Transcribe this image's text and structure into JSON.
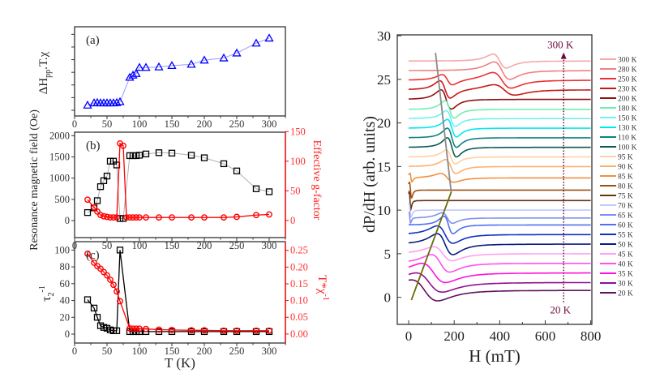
{
  "chart_data": [
    {
      "panel": "(a)",
      "type": "line",
      "ylabel": {
        "main": "ΔH",
        "sub": "pp",
        "rest": ".T.χ"
      },
      "xlim": [
        0,
        325
      ],
      "xticks": [
        0,
        50,
        100,
        150,
        200,
        250,
        300
      ],
      "ylim": [
        -0.45,
        6.6
      ],
      "yticks": [
        0,
        1,
        2,
        3,
        4,
        5,
        6
      ],
      "y_tick_labels_shown": false,
      "series": [
        {
          "color": "#0000ff",
          "line_color": "#9a9aff",
          "marker": "triangle",
          "x": [
            20,
            30,
            35,
            40,
            45,
            50,
            55,
            60,
            65,
            70,
            85,
            90,
            95,
            100,
            110,
            130,
            150,
            180,
            200,
            230,
            250,
            280,
            300
          ],
          "y": [
            0.4,
            0.58,
            0.6,
            0.58,
            0.58,
            0.58,
            0.58,
            0.58,
            0.6,
            0.67,
            2.6,
            2.77,
            2.9,
            3.38,
            3.38,
            3.42,
            3.53,
            3.63,
            3.96,
            4.13,
            4.52,
            5.3,
            5.7
          ]
        }
      ]
    },
    {
      "panel": "(b)",
      "type": "line",
      "ylabel": "Resonance magnetic field (Oe)",
      "ylabel_right": "Effective g-factor",
      "xlim": [
        0,
        325
      ],
      "xticks": [
        0,
        50,
        100,
        150,
        200,
        250,
        300
      ],
      "ylim": [
        -400,
        2083
      ],
      "yticks": [
        0,
        500,
        1000,
        1500,
        2000
      ],
      "ylim_right": [
        -29,
        149
      ],
      "yticks_right": [
        0,
        50,
        100,
        150
      ],
      "series": [
        {
          "axis": "left",
          "color": "#000000",
          "line_color": "#b0b0b0",
          "marker": "square",
          "x": [
            20,
            30,
            35,
            40,
            45,
            50,
            55,
            60,
            65,
            70,
            75,
            85,
            90,
            95,
            100,
            110,
            130,
            150,
            180,
            200,
            230,
            250,
            280,
            300
          ],
          "y": [
            190,
            300,
            470,
            800,
            940,
            1050,
            1400,
            1400,
            1310,
            50,
            50,
            1530,
            1530,
            1530,
            1540,
            1570,
            1600,
            1590,
            1540,
            1480,
            1340,
            1170,
            750,
            680
          ]
        },
        {
          "axis": "right",
          "color": "#ff0000",
          "line_color": "#ff0000",
          "marker": "circle",
          "x": [
            20,
            30,
            35,
            40,
            45,
            50,
            55,
            60,
            65,
            70,
            75,
            80,
            85,
            90,
            95,
            100,
            110,
            130,
            150,
            180,
            200,
            230,
            250,
            280,
            300
          ],
          "y": [
            35,
            22,
            15,
            9,
            7,
            6,
            5,
            5,
            5,
            130,
            126,
            5,
            5,
            5,
            5,
            5,
            5,
            5,
            5,
            5,
            5,
            5,
            6,
            9,
            10
          ]
        }
      ]
    },
    {
      "panel": "(c)",
      "type": "line",
      "xlabel": "T (K)",
      "ylabel": {
        "main": "τ",
        "sub": "2",
        "sup": "-1"
      },
      "ylabel_right": {
        "main": "T*χ",
        "sup": "-1"
      },
      "xlim": [
        0,
        325
      ],
      "xticks": [
        0,
        50,
        100,
        150,
        200,
        250,
        300
      ],
      "ylim": [
        -10.6,
        110
      ],
      "yticks": [
        0,
        20,
        40,
        60,
        80,
        100
      ],
      "ylim_right": [
        -0.027,
        0.276
      ],
      "yticks_right": [
        "0.00",
        "0.05",
        "0.10",
        "0.15",
        "0.20",
        "0.25"
      ],
      "series": [
        {
          "axis": "left",
          "color": "#000000",
          "line_color": "#000000",
          "marker": "square",
          "x": [
            20,
            30,
            35,
            40,
            45,
            50,
            55,
            60,
            65,
            70,
            85,
            90,
            95,
            100,
            110,
            130,
            150,
            180,
            200,
            230,
            250,
            280,
            300
          ],
          "y": [
            41,
            31,
            20,
            10,
            8,
            7,
            5,
            4,
            4,
            100,
            3,
            3,
            3,
            3,
            3,
            3,
            3,
            3,
            3,
            3,
            3,
            3,
            3
          ]
        },
        {
          "axis": "right",
          "color": "#ff0000",
          "line_color": "#ff0000",
          "marker": "circle",
          "x": [
            20,
            30,
            35,
            40,
            45,
            50,
            55,
            60,
            65,
            70,
            85,
            90,
            95,
            100,
            110,
            130,
            150,
            180,
            200,
            230,
            250,
            280,
            300
          ],
          "y": [
            0.24,
            0.213,
            0.203,
            0.195,
            0.185,
            0.175,
            0.162,
            0.147,
            0.127,
            0.098,
            0.017,
            0.016,
            0.016,
            0.016,
            0.015,
            0.013,
            0.012,
            0.011,
            0.011,
            0.01,
            0.01,
            0.01,
            0.01
          ]
        }
      ]
    },
    {
      "panel": "spectra",
      "type": "line",
      "xlabel": "H (mT)",
      "ylabel": "dP/dH (arb. units)",
      "xlim": [
        -50,
        805
      ],
      "xticks": [
        0,
        200,
        400,
        600,
        800
      ],
      "ylim": [
        -3.1,
        30.1
      ],
      "yticks": [
        0,
        5,
        10,
        15,
        20,
        25,
        30
      ],
      "legend": "right",
      "series": [
        {
          "name": "300 K",
          "color": "#f7a8a8",
          "offset": 27.1,
          "lines": [
            [
              400,
              50,
              0.8
            ]
          ]
        },
        {
          "name": "280 K",
          "color": "#f08080",
          "offset": 26.0,
          "lines": [
            [
              410,
              60,
              1.0
            ]
          ]
        },
        {
          "name": "250 K",
          "color": "#f03030",
          "offset": 24.9,
          "lines": [
            [
              170,
              40,
              0.6
            ],
            [
              410,
              70,
              0.9
            ]
          ]
        },
        {
          "name": "230 K",
          "color": "#c81818",
          "offset": 23.8,
          "lines": [
            [
              160,
              40,
              1.0
            ],
            [
              420,
              80,
              0.6
            ]
          ]
        },
        {
          "name": "200 K",
          "color": "#901010",
          "offset": 22.7,
          "lines": [
            [
              165,
              40,
              1.1
            ]
          ]
        },
        {
          "name": "180 K",
          "color": "#70f0b0",
          "offset": 21.55,
          "lines": [
            [
              180,
              35,
              1.0
            ]
          ]
        },
        {
          "name": "150 K",
          "color": "#70f0f0",
          "offset": 20.5,
          "lines": [
            [
              185,
              35,
              0.9
            ]
          ]
        },
        {
          "name": "130 K",
          "color": "#00e8f0",
          "offset": 19.4,
          "lines": [
            [
              190,
              35,
              1.0
            ]
          ]
        },
        {
          "name": "110 K",
          "color": "#108080",
          "offset": 18.3,
          "lines": [
            [
              190,
              35,
              1.1
            ]
          ]
        },
        {
          "name": "100 K",
          "color": "#0a5a50",
          "offset": 17.2,
          "lines": [
            [
              190,
              35,
              1.1
            ]
          ]
        },
        {
          "name": "95 K",
          "color": "#ffd0a0",
          "offset": 16.1,
          "lines": [
            [
              185,
              35,
              0.8
            ]
          ]
        },
        {
          "name": "90 K",
          "color": "#ffb070",
          "offset": 15.0,
          "lines": [
            [
              185,
              40,
              0.8
            ]
          ]
        },
        {
          "name": "85 K",
          "color": "#f09040",
          "offset": 13.7,
          "lines": [
            [
              10,
              8,
              0.5
            ],
            [
              170,
              50,
              0.5
            ]
          ]
        },
        {
          "name": "80 K",
          "color": "#a05010",
          "offset": 12.3,
          "lines": [
            [
              8,
              8,
              0.9
            ]
          ]
        },
        {
          "name": "75 K",
          "color": "#6b3010",
          "offset": 11.1,
          "lines": [
            [
              6,
              6,
              1.0
            ]
          ]
        },
        {
          "name": "70 K",
          "color": "#c0c8ff",
          "offset": 10.0,
          "lines": [
            [
              6,
              8,
              0.8
            ]
          ]
        },
        {
          "name": "65 K",
          "color": "#8090f0",
          "offset": 9.1,
          "lines": [
            [
              5,
              6,
              0.6
            ],
            [
              170,
              40,
              0.6
            ]
          ]
        },
        {
          "name": "60 K",
          "color": "#5070f0",
          "offset": 8.3,
          "lines": [
            [
              175,
              35,
              1.0
            ]
          ]
        },
        {
          "name": "55 K",
          "color": "#1030c0",
          "offset": 7.2,
          "lines": [
            [
              160,
              60,
              1.0
            ]
          ]
        },
        {
          "name": "50 K",
          "color": "#0a1a80",
          "offset": 6.1,
          "lines": [
            [
              160,
              60,
              1.2
            ]
          ]
        },
        {
          "name": "45 K",
          "color": "#ffa0f0",
          "offset": 5.0,
          "lines": [
            [
              150,
              70,
              0.8
            ]
          ]
        },
        {
          "name": "40 K",
          "color": "#ff50f0",
          "offset": 3.9,
          "lines": [
            [
              140,
              70,
              1.0
            ]
          ]
        },
        {
          "name": "35 K",
          "color": "#ff10e0",
          "offset": 2.8,
          "lines": [
            [
              110,
              90,
              1.1
            ]
          ]
        },
        {
          "name": "30 K",
          "color": "#901090",
          "offset": 1.7,
          "lines": [
            [
              90,
              100,
              1.1
            ]
          ]
        },
        {
          "name": "20 K",
          "color": "#601060",
          "offset": 0.8,
          "lines": [
            [
              70,
              100,
              1.2
            ]
          ]
        }
      ],
      "guide_lines": [
        {
          "color": "#8a8a8a",
          "x": [
            118,
            187
          ],
          "y": [
            28.05,
            12.06
          ]
        },
        {
          "color": "#6b6b10",
          "x": [
            187,
            12
          ],
          "y": [
            12.06,
            -0.3
          ]
        }
      ],
      "arrow": {
        "color": "#6a0a3a",
        "x": 681,
        "y_from": -0.55,
        "y_to": 28,
        "top_label": "300 K",
        "bottom_label": "20 K"
      }
    }
  ]
}
